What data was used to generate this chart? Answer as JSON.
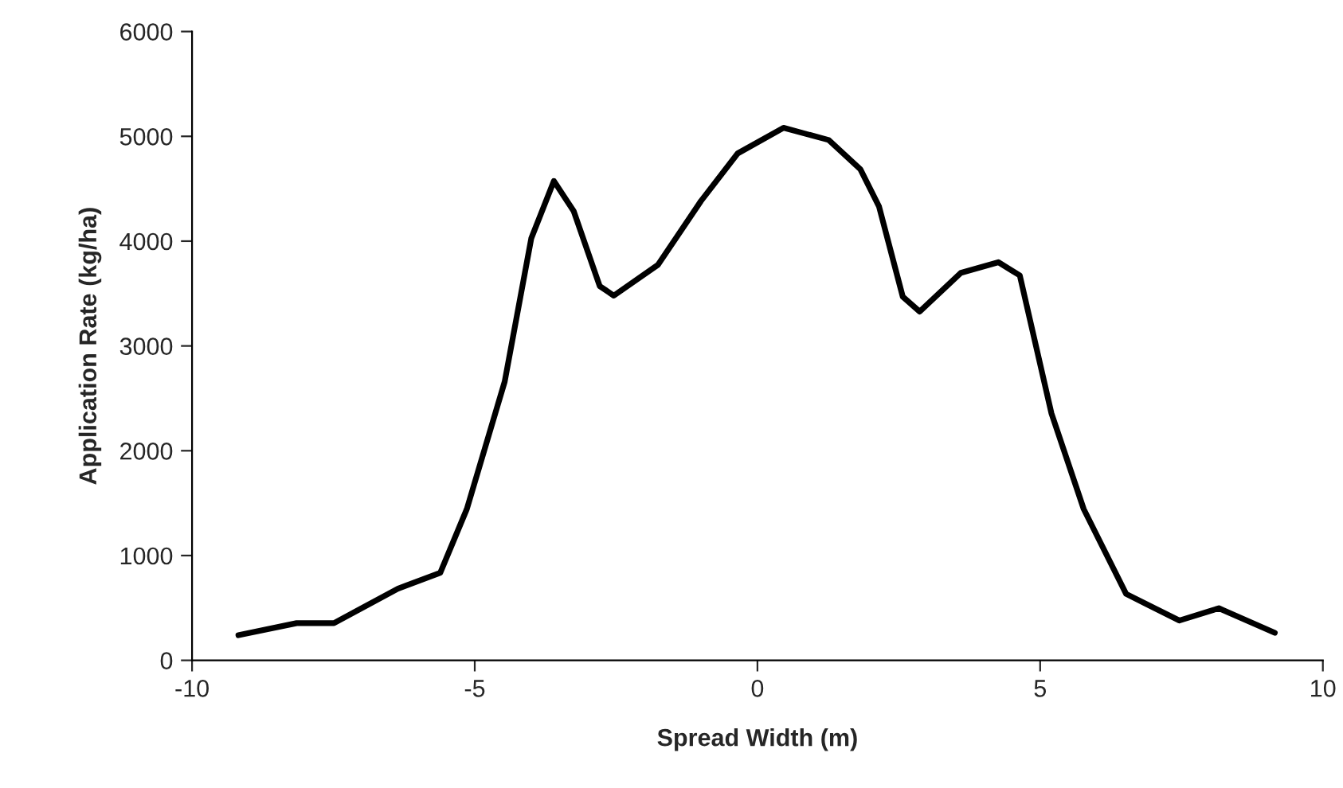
{
  "chart_data": {
    "type": "line",
    "xlabel": "Spread Width (m)",
    "ylabel": "Application Rate (kg/ha)",
    "x": [
      -9.18,
      -8.15,
      -7.49,
      -6.36,
      -5.61,
      -5.14,
      -4.47,
      -4.0,
      -3.6,
      -3.25,
      -2.79,
      -2.54,
      -1.76,
      -1.0,
      -0.35,
      0.46,
      1.26,
      1.82,
      2.15,
      2.57,
      2.87,
      3.6,
      4.26,
      4.64,
      5.2,
      5.77,
      6.52,
      7.46,
      8.16,
      9.15
    ],
    "series": [
      {
        "color": "#000000",
        "values": [
          240,
          355,
          355,
          684,
          836,
          1444,
          2660,
          4027,
          4574,
          4286,
          3571,
          3480,
          3774,
          4382,
          4837,
          5081,
          4965,
          4686,
          4331,
          3470,
          3328,
          3698,
          3799,
          3673,
          2356,
          1444,
          634,
          380,
          497,
          263
        ]
      }
    ],
    "xlim": [
      -10,
      10
    ],
    "xticks": [
      -10,
      -5,
      0,
      5,
      10
    ],
    "ylim": [
      0,
      6000
    ],
    "yticks": [
      0,
      1000,
      2000,
      3000,
      4000,
      5000,
      6000
    ],
    "grid": false,
    "legend": false,
    "marker": "none",
    "line_style": "solid"
  }
}
